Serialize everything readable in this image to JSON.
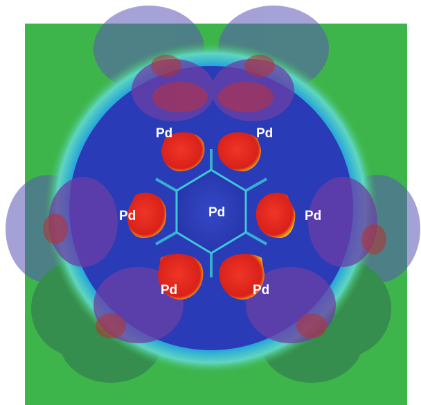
{
  "image": {
    "background_color": "#3db54a",
    "labels": {
      "center": "Pd",
      "upper_left": "Pd",
      "upper_right": "Pd",
      "mid_left": "Pd",
      "mid_right": "Pd",
      "lower_left": "Pd",
      "lower_right": "Pd"
    },
    "colors": {
      "field_blue": "#2838b8",
      "lobe_red": "#e52a1e",
      "halo_cyan": "#35c6d8",
      "translucent_purple": "#6f4aa8",
      "dark_green_shell": "#1e6f45"
    }
  }
}
